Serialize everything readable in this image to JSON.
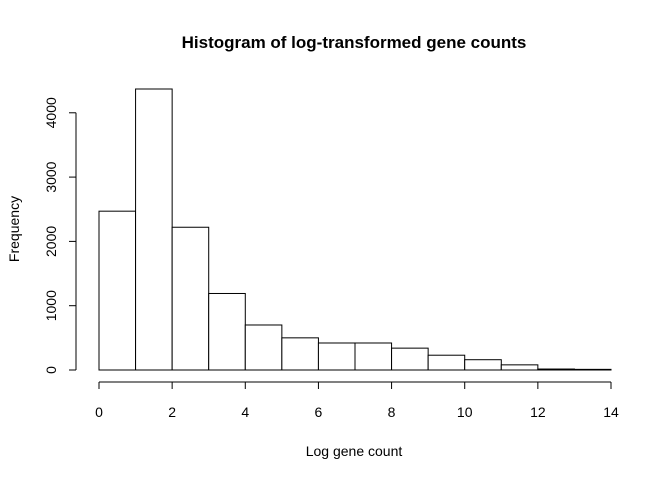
{
  "chart_data": {
    "type": "bar",
    "title": "Histogram of log-transformed gene counts",
    "xlabel": "Log gene count",
    "ylabel": "Frequency",
    "bins": [
      {
        "from": 0,
        "to": 1,
        "count": 2470
      },
      {
        "from": 1,
        "to": 2,
        "count": 4370
      },
      {
        "from": 2,
        "to": 3,
        "count": 2220
      },
      {
        "from": 3,
        "to": 4,
        "count": 1190
      },
      {
        "from": 4,
        "to": 5,
        "count": 700
      },
      {
        "from": 5,
        "to": 6,
        "count": 500
      },
      {
        "from": 6,
        "to": 7,
        "count": 420
      },
      {
        "from": 7,
        "to": 8,
        "count": 420
      },
      {
        "from": 8,
        "to": 9,
        "count": 340
      },
      {
        "from": 9,
        "to": 10,
        "count": 230
      },
      {
        "from": 10,
        "to": 11,
        "count": 160
      },
      {
        "from": 11,
        "to": 12,
        "count": 80
      },
      {
        "from": 12,
        "to": 13,
        "count": 15
      },
      {
        "from": 13,
        "to": 14,
        "count": 10
      }
    ],
    "x_ticks": [
      "0",
      "2",
      "4",
      "6",
      "8",
      "10",
      "12",
      "14"
    ],
    "y_ticks": [
      "0",
      "1000",
      "2000",
      "3000",
      "4000"
    ],
    "xlim": [
      0,
      14
    ],
    "ylim": [
      0,
      4370
    ],
    "grid": false,
    "bar_fill": "#ffffff",
    "bar_stroke": "#000000"
  }
}
